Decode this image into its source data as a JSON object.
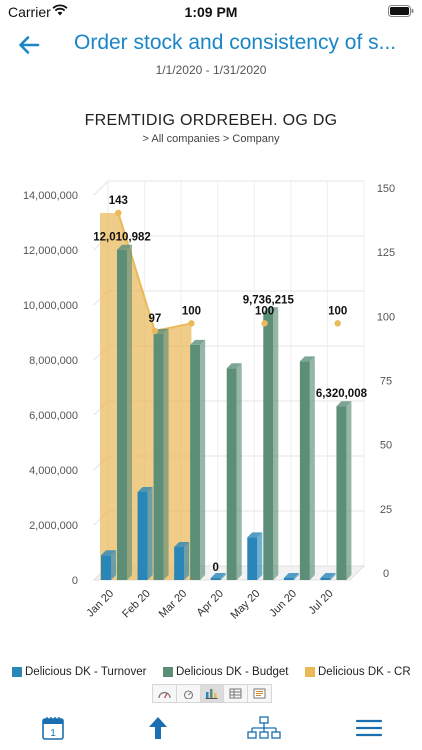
{
  "status_bar": {
    "carrier": "Carrier",
    "time": "1:09 PM"
  },
  "nav": {
    "title": "Order stock and consistency of s...",
    "back_icon": "arrow-left-icon"
  },
  "date_range": "1/1/2020 - 1/31/2020",
  "report": {
    "title": "FREMTIDIG ORDREBEH. OG DG",
    "breadcrumb": "> All companies > Company"
  },
  "chart_data": {
    "type": "bar",
    "categories": [
      "Jan 20",
      "Feb 20",
      "Mar 20",
      "Apr 20",
      "May 20",
      "Jun 20",
      "Jul 20"
    ],
    "y_left": {
      "min": 0,
      "max": 14000000,
      "ticks": [
        "0",
        "2,000,000",
        "4,000,000",
        "6,000,000",
        "8,000,000",
        "10,000,000",
        "12,000,000",
        "14,000,000"
      ]
    },
    "y_right": {
      "min": 0,
      "max": 150,
      "ticks": [
        "0",
        "25",
        "50",
        "75",
        "100",
        "125",
        "150"
      ]
    },
    "series": [
      {
        "name": "Delicious DK - Turnover",
        "type": "bar",
        "axis": "left",
        "color": "#2a86b8",
        "values": [
          900000,
          3200000,
          1200000,
          0,
          1550000,
          0,
          0
        ]
      },
      {
        "name": "Delicious DK - Budget",
        "type": "bar",
        "axis": "left",
        "color": "#5d8f78",
        "values": [
          12010982,
          8950000,
          8550000,
          7700000,
          9736215,
          7950000,
          6320008
        ]
      },
      {
        "name": "Delicious DK - CR",
        "type": "line-area",
        "axis": "right",
        "color": "#e9b95a",
        "values": [
          143,
          97,
          100,
          null,
          100,
          null,
          100
        ]
      }
    ],
    "data_labels": [
      {
        "series": 1,
        "index": 0,
        "text": "12,010,982"
      },
      {
        "series": 1,
        "index": 4,
        "text": "9,736,215"
      },
      {
        "series": 1,
        "index": 6,
        "text": "6,320,008"
      },
      {
        "series": 0,
        "index": 3,
        "text": "0"
      },
      {
        "series": 2,
        "index": 0,
        "text": "143"
      },
      {
        "series": 2,
        "index": 1,
        "text": "97"
      },
      {
        "series": 2,
        "index": 2,
        "text": "100"
      },
      {
        "series": 2,
        "index": 4,
        "text": "100"
      },
      {
        "series": 2,
        "index": 6,
        "text": "100"
      }
    ],
    "legend_position": "bottom",
    "grid": true
  },
  "chart_type_buttons": [
    "gauge-icon",
    "gauge-small-icon",
    "bar-chart-icon",
    "table-icon",
    "list-icon"
  ],
  "tab_bar": [
    "calendar-icon",
    "arrow-up-icon",
    "hierarchy-icon",
    "menu-icon"
  ]
}
